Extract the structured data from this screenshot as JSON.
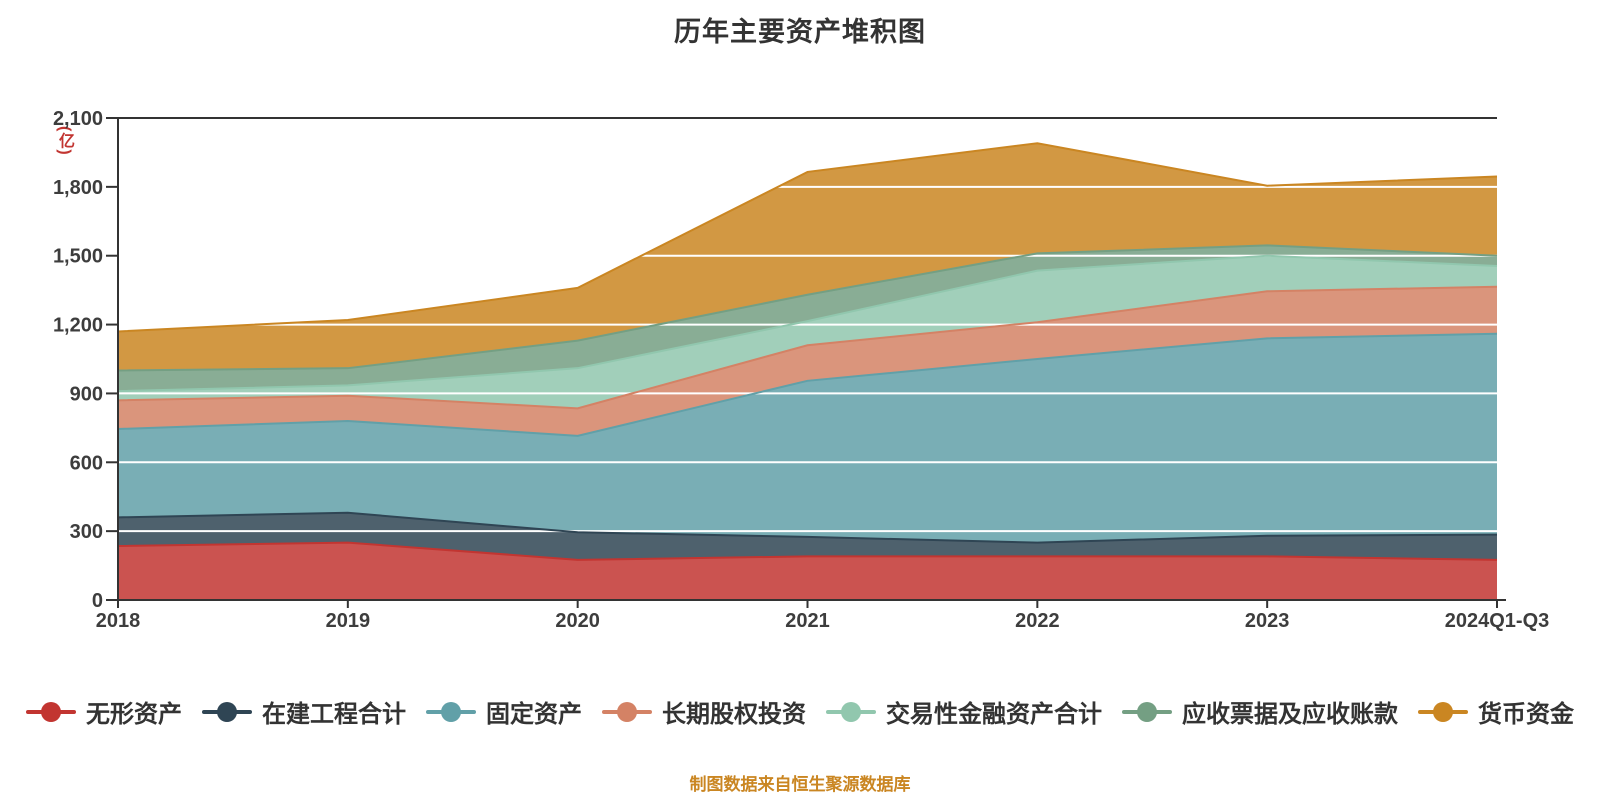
{
  "page": {
    "title": "历年主要资产堆积图",
    "y_axis_unit": "(亿)",
    "footer_note": "制图数据来自恒生聚源数据库"
  },
  "colors": {
    "background": "#ffffff",
    "title_text": "#333333",
    "axis_text": "#3d3d3d",
    "axis_line": "#333333",
    "gridline": "#ffffff",
    "unit_text": "#c23531",
    "footer_text": "#ca8622",
    "legend_text": "#333333"
  },
  "chart_data": {
    "type": "area",
    "stacked": true,
    "title": "历年主要资产堆积图",
    "unit": "亿",
    "categories": [
      "2018",
      "2019",
      "2020",
      "2021",
      "2022",
      "2023",
      "2024Q1-Q3"
    ],
    "series": [
      {
        "name": "无形资产",
        "key": "intangible-assets",
        "color": "#c23531",
        "values": [
          235,
          250,
          175,
          190,
          190,
          190,
          175
        ]
      },
      {
        "name": "在建工程合计",
        "key": "construction-in-progress",
        "color": "#2f4554",
        "values": [
          125,
          130,
          120,
          85,
          60,
          90,
          110
        ]
      },
      {
        "name": "固定资产",
        "key": "fixed-assets",
        "color": "#61a0a8",
        "values": [
          385,
          400,
          420,
          680,
          800,
          860,
          875
        ]
      },
      {
        "name": "长期股权投资",
        "key": "long-term-equity-investment",
        "color": "#d48265",
        "values": [
          125,
          110,
          120,
          155,
          160,
          205,
          205
        ]
      },
      {
        "name": "交易性金融资产合计",
        "key": "trading-financial-assets",
        "color": "#91c7ae",
        "values": [
          40,
          45,
          175,
          105,
          225,
          155,
          90
        ]
      },
      {
        "name": "应收票据及应收账款",
        "key": "notes-and-accounts-receivable",
        "color": "#749f83",
        "values": [
          90,
          75,
          120,
          115,
          75,
          45,
          45
        ]
      },
      {
        "name": "货币资金",
        "key": "monetary-funds",
        "color": "#ca8622",
        "values": [
          170,
          210,
          230,
          535,
          480,
          260,
          345
        ]
      }
    ],
    "totals": [
      1170,
      1220,
      1360,
      1865,
      1990,
      1805,
      1845
    ],
    "ylim": [
      0,
      2100
    ],
    "ytick_interval": 300,
    "ytick_labels": [
      "0",
      "300",
      "600",
      "900",
      "1,200",
      "1,500",
      "1,800",
      "2,100"
    ],
    "grid": true,
    "legend_position": "bottom",
    "fill_opacity": 0.85
  }
}
